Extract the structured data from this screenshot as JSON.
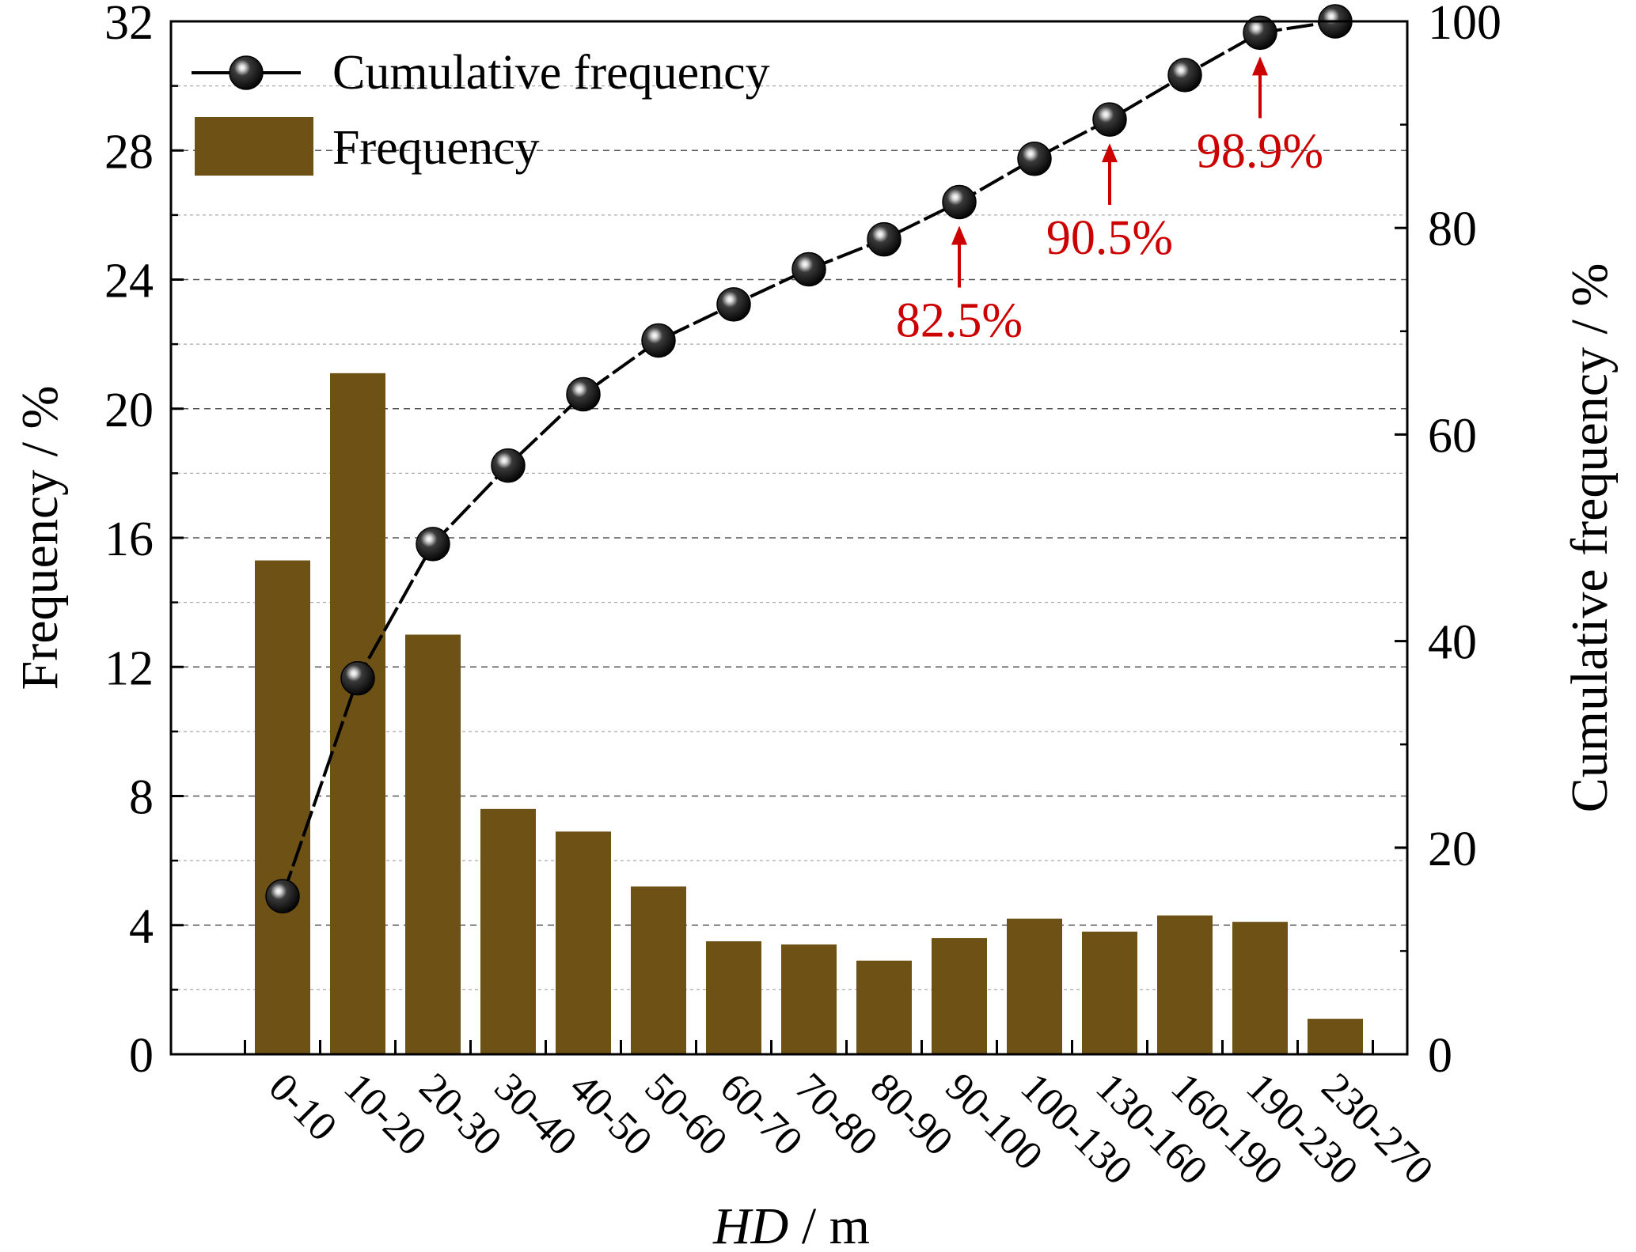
{
  "colors": {
    "bar": "#6e5215",
    "line": "#000000",
    "annotation": "#cc0000",
    "grid": "#888888"
  },
  "legend": {
    "position": "top-left",
    "line_label": "Cumulative frequency",
    "bar_label": "Frequency"
  },
  "chart_data": {
    "type": "bar",
    "categories": [
      "0-10",
      "10-20",
      "20-30",
      "30-40",
      "40-50",
      "50-60",
      "60-70",
      "70-80",
      "80-90",
      "90-100",
      "100-130",
      "130-160",
      "160-190",
      "190-230",
      "230-270"
    ],
    "xlabel": "HD / m",
    "xlabel_italic_part": "HD",
    "xlabel_unit_part": " / m",
    "series": [
      {
        "name": "Frequency",
        "type": "bar",
        "axis": "left",
        "values": [
          15.3,
          21.1,
          13.0,
          7.6,
          6.9,
          5.2,
          3.5,
          3.4,
          2.9,
          3.6,
          4.2,
          3.8,
          4.3,
          4.1,
          1.1
        ]
      },
      {
        "name": "Cumulative frequency",
        "type": "line",
        "axis": "right",
        "values": [
          15.3,
          36.4,
          49.4,
          57.0,
          63.9,
          69.1,
          72.6,
          76.0,
          78.9,
          82.5,
          86.7,
          90.5,
          94.8,
          98.9,
          100.0
        ]
      }
    ],
    "y_left": {
      "label": "Frequency / %",
      "range": [
        0,
        32
      ],
      "ticks": [
        0,
        4,
        8,
        12,
        16,
        20,
        24,
        28,
        32
      ]
    },
    "y_right": {
      "label": "Cumulative frequency / %",
      "range": [
        0,
        100
      ],
      "ticks": [
        0,
        20,
        40,
        60,
        80,
        100
      ]
    },
    "grid": {
      "horizontal": true,
      "style": "dashed"
    },
    "annotations": [
      {
        "category_index": 9,
        "value": 82.5,
        "text": "82.5%"
      },
      {
        "category_index": 11,
        "value": 90.5,
        "text": "90.5%"
      },
      {
        "category_index": 13,
        "value": 98.9,
        "text": "98.9%"
      }
    ]
  }
}
